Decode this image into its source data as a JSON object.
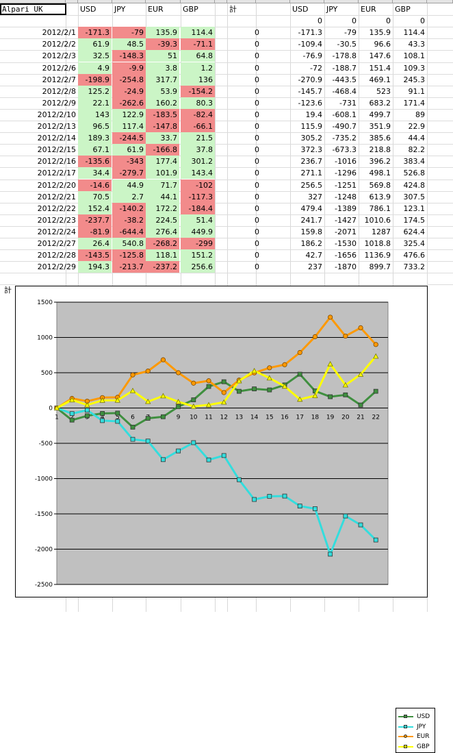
{
  "sheet": {
    "title_cell": "Alpari UK",
    "headers_left": [
      "USD",
      "JPY",
      "EUR",
      "GBP"
    ],
    "headers_right": [
      "USD",
      "JPY",
      "EUR",
      "GBP"
    ],
    "total_col_header": "計",
    "total_row_label": "計",
    "initial_row": [
      "0",
      "0",
      "0",
      "0"
    ],
    "rows": [
      {
        "date": "2012/2/1",
        "usd": "-171.3",
        "jpy": "-79",
        "eur": "135.9",
        "gbp": "114.4",
        "zero": "0",
        "cusd": "-171.3",
        "cjpy": "-79",
        "ceur": "135.9",
        "cgbp": "114.4"
      },
      {
        "date": "2012/2/2",
        "usd": "61.9",
        "jpy": "48.5",
        "eur": "-39.3",
        "gbp": "-71.1",
        "zero": "0",
        "cusd": "-109.4",
        "cjpy": "-30.5",
        "ceur": "96.6",
        "cgbp": "43.3"
      },
      {
        "date": "2012/2/3",
        "usd": "32.5",
        "jpy": "-148.3",
        "eur": "51",
        "gbp": "64.8",
        "zero": "0",
        "cusd": "-76.9",
        "cjpy": "-178.8",
        "ceur": "147.6",
        "cgbp": "108.1"
      },
      {
        "date": "2012/2/6",
        "usd": "4.9",
        "jpy": "-9.9",
        "eur": "3.8",
        "gbp": "1.2",
        "zero": "0",
        "cusd": "-72",
        "cjpy": "-188.7",
        "ceur": "151.4",
        "cgbp": "109.3"
      },
      {
        "date": "2012/2/7",
        "usd": "-198.9",
        "jpy": "-254.8",
        "eur": "317.7",
        "gbp": "136",
        "zero": "0",
        "cusd": "-270.9",
        "cjpy": "-443.5",
        "ceur": "469.1",
        "cgbp": "245.3"
      },
      {
        "date": "2012/2/8",
        "usd": "125.2",
        "jpy": "-24.9",
        "eur": "53.9",
        "gbp": "-154.2",
        "zero": "0",
        "cusd": "-145.7",
        "cjpy": "-468.4",
        "ceur": "523",
        "cgbp": "91.1"
      },
      {
        "date": "2012/2/9",
        "usd": "22.1",
        "jpy": "-262.6",
        "eur": "160.2",
        "gbp": "80.3",
        "zero": "0",
        "cusd": "-123.6",
        "cjpy": "-731",
        "ceur": "683.2",
        "cgbp": "171.4"
      },
      {
        "date": "2012/2/10",
        "usd": "143",
        "jpy": "122.9",
        "eur": "-183.5",
        "gbp": "-82.4",
        "zero": "0",
        "cusd": "19.4",
        "cjpy": "-608.1",
        "ceur": "499.7",
        "cgbp": "89"
      },
      {
        "date": "2012/2/13",
        "usd": "96.5",
        "jpy": "117.4",
        "eur": "-147.8",
        "gbp": "-66.1",
        "zero": "0",
        "cusd": "115.9",
        "cjpy": "-490.7",
        "ceur": "351.9",
        "cgbp": "22.9"
      },
      {
        "date": "2012/2/14",
        "usd": "189.3",
        "jpy": "-244.5",
        "eur": "33.7",
        "gbp": "21.5",
        "zero": "0",
        "cusd": "305.2",
        "cjpy": "-735.2",
        "ceur": "385.6",
        "cgbp": "44.4"
      },
      {
        "date": "2012/2/15",
        "usd": "67.1",
        "jpy": "61.9",
        "eur": "-166.8",
        "gbp": "37.8",
        "zero": "0",
        "cusd": "372.3",
        "cjpy": "-673.3",
        "ceur": "218.8",
        "cgbp": "82.2"
      },
      {
        "date": "2012/2/16",
        "usd": "-135.6",
        "jpy": "-343",
        "eur": "177.4",
        "gbp": "301.2",
        "zero": "0",
        "cusd": "236.7",
        "cjpy": "-1016",
        "ceur": "396.2",
        "cgbp": "383.4"
      },
      {
        "date": "2012/2/17",
        "usd": "34.4",
        "jpy": "-279.7",
        "eur": "101.9",
        "gbp": "143.4",
        "zero": "0",
        "cusd": "271.1",
        "cjpy": "-1296",
        "ceur": "498.1",
        "cgbp": "526.8"
      },
      {
        "date": "2012/2/20",
        "usd": "-14.6",
        "jpy": "44.9",
        "eur": "71.7",
        "gbp": "-102",
        "zero": "0",
        "cusd": "256.5",
        "cjpy": "-1251",
        "ceur": "569.8",
        "cgbp": "424.8"
      },
      {
        "date": "2012/2/21",
        "usd": "70.5",
        "jpy": "2.7",
        "eur": "44.1",
        "gbp": "-117.3",
        "zero": "0",
        "cusd": "327",
        "cjpy": "-1248",
        "ceur": "613.9",
        "cgbp": "307.5"
      },
      {
        "date": "2012/2/22",
        "usd": "152.4",
        "jpy": "-140.2",
        "eur": "172.2",
        "gbp": "-184.4",
        "zero": "0",
        "cusd": "479.4",
        "cjpy": "-1389",
        "ceur": "786.1",
        "cgbp": "123.1"
      },
      {
        "date": "2012/2/23",
        "usd": "-237.7",
        "jpy": "-38.2",
        "eur": "224.5",
        "gbp": "51.4",
        "zero": "0",
        "cusd": "241.7",
        "cjpy": "-1427",
        "ceur": "1010.6",
        "cgbp": "174.5"
      },
      {
        "date": "2012/2/24",
        "usd": "-81.9",
        "jpy": "-644.4",
        "eur": "276.4",
        "gbp": "449.9",
        "zero": "0",
        "cusd": "159.8",
        "cjpy": "-2071",
        "ceur": "1287",
        "cgbp": "624.4"
      },
      {
        "date": "2012/2/27",
        "usd": "26.4",
        "jpy": "540.8",
        "eur": "-268.2",
        "gbp": "-299",
        "zero": "0",
        "cusd": "186.2",
        "cjpy": "-1530",
        "ceur": "1018.8",
        "cgbp": "325.4"
      },
      {
        "date": "2012/2/28",
        "usd": "-143.5",
        "jpy": "-125.8",
        "eur": "118.1",
        "gbp": "151.2",
        "zero": "0",
        "cusd": "42.7",
        "cjpy": "-1656",
        "ceur": "1136.9",
        "cgbp": "476.6"
      },
      {
        "date": "2012/2/29",
        "usd": "194.3",
        "jpy": "-213.7",
        "eur": "-237.2",
        "gbp": "256.6",
        "zero": "0",
        "cusd": "237",
        "cjpy": "-1870",
        "ceur": "899.7",
        "cgbp": "733.2"
      }
    ],
    "totals": [
      "237",
      "-1870",
      "899.7",
      "733.2"
    ],
    "colors": {
      "positive": "#cbf5c6",
      "negative": "#f28b8b"
    }
  },
  "chart_data": {
    "type": "line",
    "x": [
      "1",
      "2",
      "3",
      "4",
      "5",
      "6",
      "7",
      "8",
      "9",
      "10",
      "11",
      "12",
      "13",
      "14",
      "15",
      "16",
      "17",
      "18",
      "19",
      "20",
      "21",
      "22"
    ],
    "ylim": [
      -2500,
      1500
    ],
    "yticks": [
      "1500",
      "1000",
      "500",
      "0",
      "-500",
      "-1000",
      "-1500",
      "-2000",
      "-2500"
    ],
    "grid": true,
    "legend_position": "right",
    "plot_background": "#c0c0c0",
    "series": [
      {
        "name": "USD",
        "color": "#3f8f3f",
        "marker": "square",
        "values": [
          0,
          -171.3,
          -109.4,
          -76.9,
          -72,
          -270.9,
          -145.7,
          -123.6,
          19.4,
          115.9,
          305.2,
          372.3,
          236.7,
          271.1,
          256.5,
          327,
          479.4,
          241.7,
          159.8,
          186.2,
          42.7,
          237
        ]
      },
      {
        "name": "JPY",
        "color": "#33dddd",
        "marker": "square",
        "values": [
          0,
          -79,
          -30.5,
          -178.8,
          -188.7,
          -443.5,
          -468.4,
          -731,
          -608.1,
          -490.7,
          -735.2,
          -673.3,
          -1016,
          -1296,
          -1251,
          -1248,
          -1389,
          -1427,
          -2071,
          -1530,
          -1656,
          -1870
        ]
      },
      {
        "name": "EUR",
        "color": "#ff9900",
        "marker": "circle",
        "values": [
          0,
          135.9,
          96.6,
          147.6,
          151.4,
          469.1,
          523,
          683.2,
          499.7,
          351.9,
          385.6,
          218.8,
          396.2,
          498.1,
          569.8,
          613.9,
          786.1,
          1010.6,
          1287,
          1018.8,
          1136.9,
          899.7
        ]
      },
      {
        "name": "GBP",
        "color": "#ffff00",
        "marker": "triangle",
        "values": [
          0,
          114.4,
          43.3,
          108.1,
          109.3,
          245.3,
          91.1,
          171.4,
          89,
          22.9,
          44.4,
          82.2,
          383.4,
          526.8,
          424.8,
          307.5,
          123.1,
          174.5,
          624.4,
          325.4,
          476.6,
          733.2
        ]
      }
    ]
  }
}
